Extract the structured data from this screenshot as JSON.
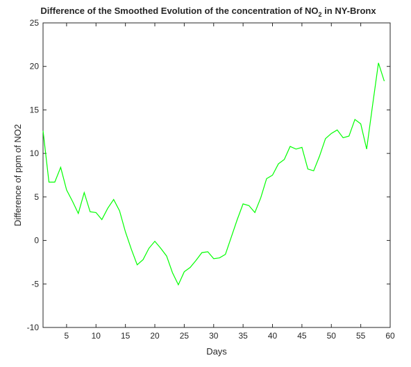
{
  "chart_data": {
    "type": "line",
    "title": {
      "prefix": "Difference of the Smoothed Evolution of the concentration of NO",
      "subscript": "2",
      "suffix": " in NY-Bronx"
    },
    "xlabel": "Days",
    "ylabel": "Difference of ppm of NO2",
    "xlim": [
      1,
      60
    ],
    "ylim": [
      -10,
      25
    ],
    "xticks": [
      5,
      10,
      15,
      20,
      25,
      30,
      35,
      40,
      45,
      50,
      55,
      60
    ],
    "yticks": [
      -10,
      -5,
      0,
      5,
      10,
      15,
      20,
      25
    ],
    "grid": false,
    "series": [
      {
        "color": "#00ff00",
        "x": [
          1,
          2,
          3,
          4,
          5,
          6,
          7,
          8,
          9,
          10,
          11,
          12,
          13,
          14,
          15,
          16,
          17,
          18,
          19,
          20,
          21,
          22,
          23,
          24,
          25,
          26,
          27,
          28,
          29,
          30,
          31,
          32,
          33,
          34,
          35,
          36,
          37,
          38,
          39,
          40,
          41,
          42,
          43,
          44,
          45,
          46,
          47,
          48,
          49,
          50,
          51,
          52,
          53,
          54,
          55,
          56,
          57,
          58,
          59
        ],
        "y": [
          12.6,
          6.7,
          6.7,
          8.4,
          5.8,
          4.5,
          3.1,
          5.5,
          3.3,
          3.2,
          2.4,
          3.7,
          4.7,
          3.4,
          1.0,
          -1.0,
          -2.8,
          -2.2,
          -0.9,
          -0.1,
          -0.9,
          -1.8,
          -3.7,
          -5.1,
          -3.6,
          -3.1,
          -2.3,
          -1.4,
          -1.3,
          -2.1,
          -2.0,
          -1.6,
          0.4,
          2.4,
          4.2,
          4.0,
          3.2,
          4.9,
          7.1,
          7.5,
          8.8,
          9.3,
          10.8,
          10.5,
          10.7,
          8.2,
          8.0,
          9.7,
          11.7,
          12.3,
          12.7,
          11.8,
          12.0,
          13.9,
          13.4,
          10.5,
          15.5,
          20.4,
          18.3
        ]
      }
    ]
  }
}
